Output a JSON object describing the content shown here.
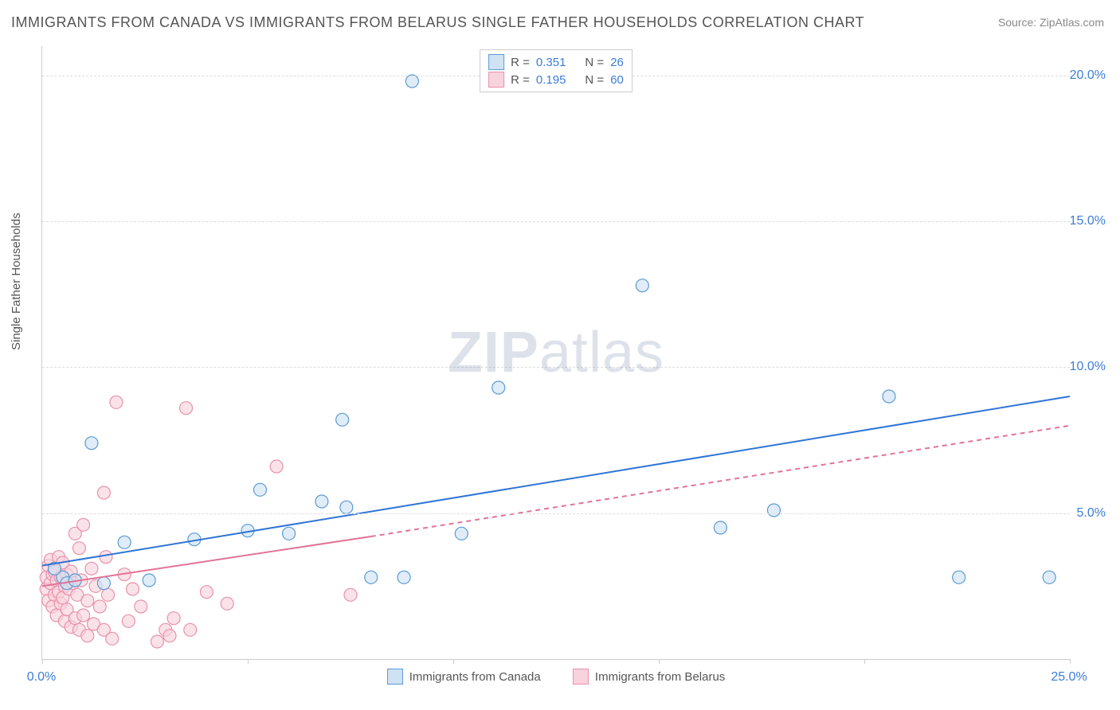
{
  "title": "IMMIGRANTS FROM CANADA VS IMMIGRANTS FROM BELARUS SINGLE FATHER HOUSEHOLDS CORRELATION CHART",
  "source": "Source: ZipAtlas.com",
  "ylabel": "Single Father Households",
  "watermark_a": "ZIP",
  "watermark_b": "atlas",
  "chart": {
    "type": "scatter",
    "xlim": [
      0,
      25
    ],
    "ylim": [
      0,
      21
    ],
    "x_ticks": [
      0,
      5,
      10,
      15,
      20,
      25
    ],
    "x_tick_labels": [
      "0.0%",
      "",
      "",
      "",
      "",
      "25.0%"
    ],
    "y_gridlines": [
      5,
      10,
      15,
      20
    ],
    "y_tick_labels": [
      "5.0%",
      "10.0%",
      "15.0%",
      "20.0%"
    ],
    "background_color": "#ffffff",
    "grid_color": "#dddddd",
    "axis_color": "#cccccc",
    "marker_radius": 8,
    "marker_stroke_width": 1.2,
    "marker_fill_opacity": 0.25,
    "line_width": 2,
    "series": [
      {
        "name": "Immigrants from Canada",
        "label": "Immigrants from Canada",
        "color_stroke": "#5a9bd5",
        "color_fill": "#cfe2f3",
        "line_color": "#2e75d6",
        "r": "0.351",
        "n": "26",
        "regression": {
          "x1": 0,
          "y1": 3.2,
          "x2": 25,
          "y2": 9.0
        },
        "points": [
          [
            0.5,
            2.8
          ],
          [
            0.6,
            2.6
          ],
          [
            0.8,
            2.7
          ],
          [
            1.2,
            7.4
          ],
          [
            1.5,
            2.6
          ],
          [
            2.0,
            4.0
          ],
          [
            2.6,
            2.7
          ],
          [
            3.7,
            4.1
          ],
          [
            5.0,
            4.4
          ],
          [
            5.3,
            5.8
          ],
          [
            6.0,
            4.3
          ],
          [
            6.8,
            5.4
          ],
          [
            7.3,
            8.2
          ],
          [
            7.4,
            5.2
          ],
          [
            8.0,
            2.8
          ],
          [
            8.8,
            2.8
          ],
          [
            9.0,
            19.8
          ],
          [
            10.2,
            4.3
          ],
          [
            11.1,
            9.3
          ],
          [
            14.6,
            12.8
          ],
          [
            16.5,
            4.5
          ],
          [
            17.8,
            5.1
          ],
          [
            20.6,
            9.0
          ],
          [
            22.3,
            2.8
          ],
          [
            24.5,
            2.8
          ],
          [
            0.3,
            3.1
          ]
        ]
      },
      {
        "name": "Immigrants from Belarus",
        "label": "Immigrants from Belarus",
        "color_stroke": "#e892a8",
        "color_fill": "#f8d3dd",
        "line_color": "#e27396",
        "r": "0.195",
        "n": "60",
        "regression_solid": {
          "x1": 0,
          "y1": 2.5,
          "x2": 8,
          "y2": 4.2
        },
        "regression_dashed": {
          "x1": 8,
          "y1": 4.2,
          "x2": 25,
          "y2": 8.0
        },
        "points": [
          [
            0.1,
            2.4
          ],
          [
            0.1,
            2.8
          ],
          [
            0.15,
            3.2
          ],
          [
            0.15,
            2.0
          ],
          [
            0.2,
            2.6
          ],
          [
            0.2,
            3.4
          ],
          [
            0.25,
            1.8
          ],
          [
            0.25,
            2.9
          ],
          [
            0.3,
            2.2
          ],
          [
            0.3,
            3.0
          ],
          [
            0.35,
            1.5
          ],
          [
            0.35,
            2.7
          ],
          [
            0.4,
            2.3
          ],
          [
            0.4,
            3.5
          ],
          [
            0.45,
            1.9
          ],
          [
            0.45,
            2.8
          ],
          [
            0.5,
            2.1
          ],
          [
            0.5,
            3.3
          ],
          [
            0.55,
            1.3
          ],
          [
            0.55,
            2.5
          ],
          [
            0.6,
            2.9
          ],
          [
            0.6,
            1.7
          ],
          [
            0.65,
            2.4
          ],
          [
            0.7,
            3.0
          ],
          [
            0.7,
            1.1
          ],
          [
            0.75,
            2.6
          ],
          [
            0.8,
            1.4
          ],
          [
            0.8,
            4.3
          ],
          [
            0.85,
            2.2
          ],
          [
            0.9,
            3.8
          ],
          [
            0.9,
            1.0
          ],
          [
            0.95,
            2.7
          ],
          [
            1.0,
            1.5
          ],
          [
            1.0,
            4.6
          ],
          [
            1.1,
            2.0
          ],
          [
            1.1,
            0.8
          ],
          [
            1.2,
            3.1
          ],
          [
            1.25,
            1.2
          ],
          [
            1.3,
            2.5
          ],
          [
            1.4,
            1.8
          ],
          [
            1.5,
            5.7
          ],
          [
            1.5,
            1.0
          ],
          [
            1.55,
            3.5
          ],
          [
            1.6,
            2.2
          ],
          [
            1.7,
            0.7
          ],
          [
            1.8,
            8.8
          ],
          [
            2.0,
            2.9
          ],
          [
            2.1,
            1.3
          ],
          [
            2.2,
            2.4
          ],
          [
            2.4,
            1.8
          ],
          [
            2.8,
            0.6
          ],
          [
            3.0,
            1.0
          ],
          [
            3.1,
            0.8
          ],
          [
            3.2,
            1.4
          ],
          [
            3.5,
            8.6
          ],
          [
            3.6,
            1.0
          ],
          [
            4.0,
            2.3
          ],
          [
            4.5,
            1.9
          ],
          [
            5.7,
            6.6
          ],
          [
            7.5,
            2.2
          ]
        ]
      }
    ]
  },
  "legend_top": [
    {
      "swatch_fill": "#cfe2f3",
      "swatch_stroke": "#5a9bd5",
      "r_label": "R =",
      "r_value": "0.351",
      "n_label": "N =",
      "n_value": "26"
    },
    {
      "swatch_fill": "#f8d3dd",
      "swatch_stroke": "#e892a8",
      "r_label": "R =",
      "r_value": "0.195",
      "n_label": "N =",
      "n_value": "60"
    }
  ],
  "legend_bottom": [
    {
      "swatch_fill": "#cfe2f3",
      "swatch_stroke": "#5a9bd5",
      "label": "Immigrants from Canada"
    },
    {
      "swatch_fill": "#f8d3dd",
      "swatch_stroke": "#e892a8",
      "label": "Immigrants from Belarus"
    }
  ],
  "colors": {
    "title": "#555555",
    "source": "#888888",
    "tick_label_x": "#3b7dd8",
    "tick_label_y": "#3b7dd8"
  }
}
